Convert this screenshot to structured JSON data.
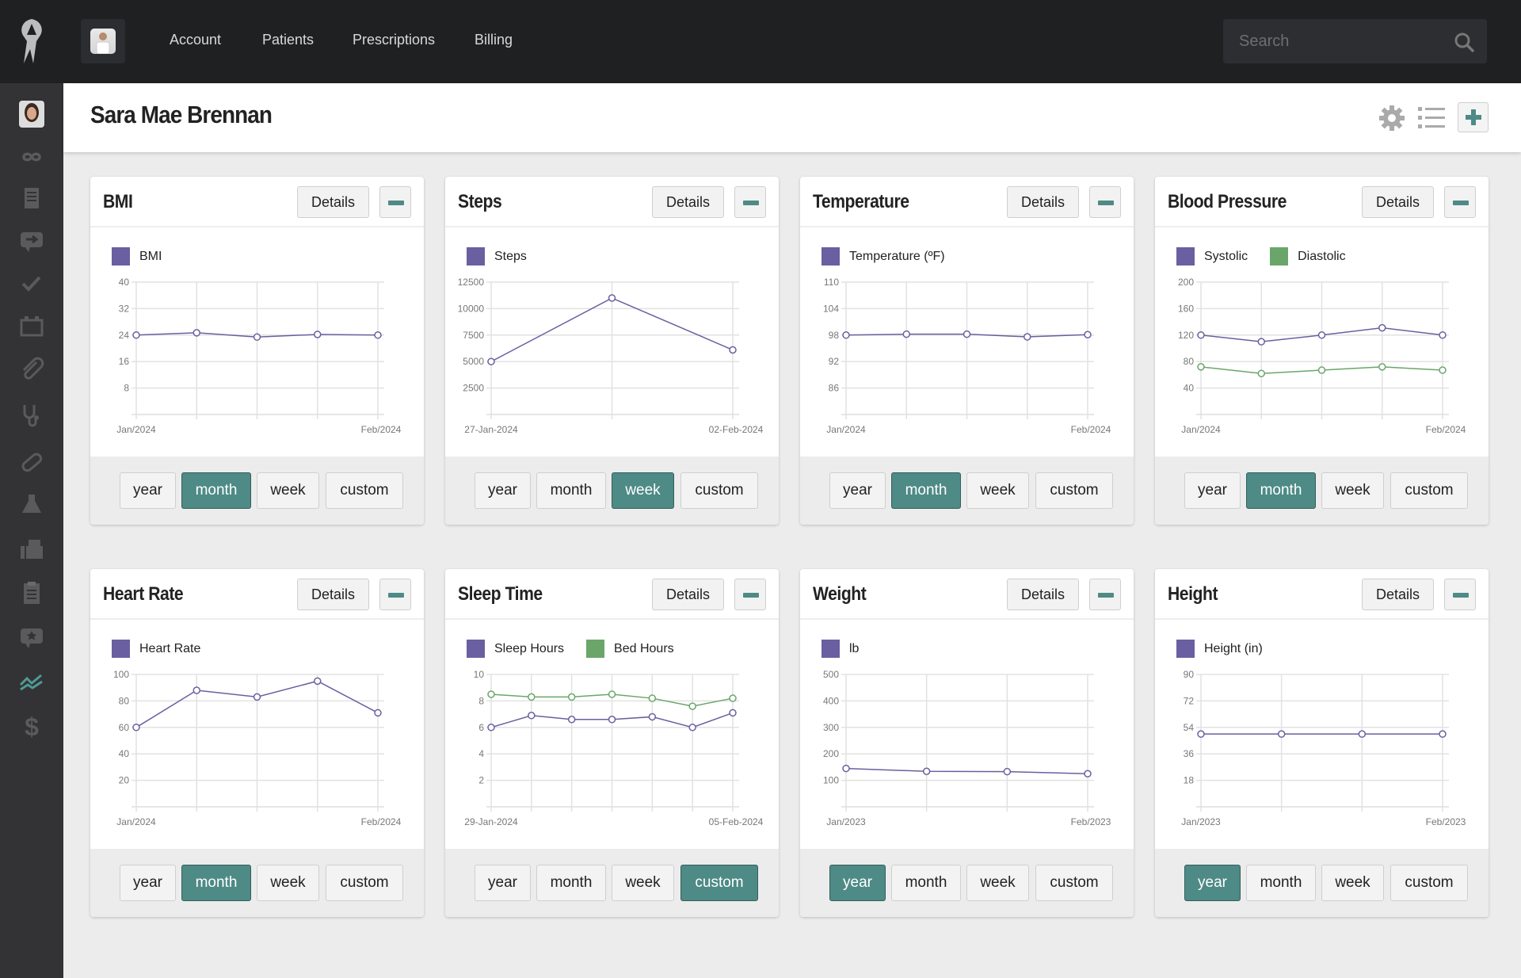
{
  "topbar": {
    "nav": [
      "Account",
      "Patients",
      "Prescriptions",
      "Billing"
    ],
    "search_placeholder": "Search"
  },
  "sidebar": {
    "items": [
      "patient-avatar",
      "infinity-icon",
      "document-icon",
      "message-forward-icon",
      "check-icon",
      "calendar-icon",
      "paperclip-icon",
      "stethoscope-icon",
      "pill-icon",
      "flask-icon",
      "fax-icon",
      "clipboard-icon",
      "star-message-icon",
      "vitals-chart-icon",
      "dollar-icon"
    ],
    "active": "vitals-chart-icon"
  },
  "header": {
    "title": "Sara Mae Brennan"
  },
  "colors": {
    "accent": "#4e8a86",
    "series1": "#6a5fa0",
    "series2": "#6aa66a"
  },
  "card_labels": {
    "details": "Details",
    "ranges": [
      "year",
      "month",
      "week",
      "custom"
    ]
  },
  "cards": [
    {
      "title": "BMI",
      "active_range": "month"
    },
    {
      "title": "Steps",
      "active_range": "week"
    },
    {
      "title": "Temperature",
      "active_range": "month"
    },
    {
      "title": "Blood Pressure",
      "active_range": "month"
    },
    {
      "title": "Heart Rate",
      "active_range": "month"
    },
    {
      "title": "Sleep Time",
      "active_range": "custom"
    },
    {
      "title": "Weight",
      "active_range": "year"
    },
    {
      "title": "Height",
      "active_range": "year"
    }
  ],
  "chart_data": [
    {
      "type": "line",
      "ylim": [
        0,
        40
      ],
      "yticks": [
        "8",
        "16",
        "24",
        "32",
        "40"
      ],
      "xlabels": [
        "Jan/2024",
        "Feb/2024"
      ],
      "grid": true,
      "series": [
        {
          "name": "BMI",
          "values": [
            24,
            24.7,
            23.4,
            24.2,
            24
          ]
        }
      ]
    },
    {
      "type": "line",
      "ylim": [
        0,
        12500
      ],
      "yticks": [
        "2500",
        "5000",
        "7500",
        "10000",
        "12500"
      ],
      "xlabels": [
        "27-Jan-2024",
        "02-Feb-2024"
      ],
      "grid": true,
      "series": [
        {
          "name": "Steps",
          "values": [
            5000,
            11000,
            6100
          ]
        }
      ]
    },
    {
      "type": "line",
      "ylim": [
        80,
        110
      ],
      "yticks": [
        "86",
        "92",
        "98",
        "104",
        "110"
      ],
      "xlabels": [
        "Jan/2024",
        "Feb/2024"
      ],
      "grid": true,
      "series": [
        {
          "name": "Temperature (ºF)",
          "values": [
            98,
            98.2,
            98.2,
            97.6,
            98.1
          ]
        }
      ]
    },
    {
      "type": "line",
      "ylim": [
        0,
        200
      ],
      "yticks": [
        "40",
        "80",
        "120",
        "160",
        "200"
      ],
      "xlabels": [
        "Jan/2024",
        "Feb/2024"
      ],
      "grid": true,
      "series": [
        {
          "name": "Systolic",
          "values": [
            120,
            110,
            120,
            131,
            120
          ]
        },
        {
          "name": "Diastolic",
          "values": [
            72,
            62,
            67,
            72,
            67
          ]
        }
      ]
    },
    {
      "type": "line",
      "ylim": [
        0,
        100
      ],
      "yticks": [
        "20",
        "40",
        "60",
        "80",
        "100"
      ],
      "xlabels": [
        "Jan/2024",
        "Feb/2024"
      ],
      "grid": true,
      "series": [
        {
          "name": "Heart Rate",
          "values": [
            60,
            88,
            83,
            95,
            71
          ]
        }
      ]
    },
    {
      "type": "line",
      "ylim": [
        0,
        10
      ],
      "yticks": [
        "2",
        "4",
        "6",
        "8",
        "10"
      ],
      "xlabels": [
        "29-Jan-2024",
        "05-Feb-2024"
      ],
      "grid": true,
      "series": [
        {
          "name": "Sleep Hours",
          "values": [
            6,
            6.9,
            6.6,
            6.6,
            6.8,
            6.0,
            7.1
          ]
        },
        {
          "name": "Bed Hours",
          "values": [
            8.5,
            8.3,
            8.3,
            8.5,
            8.2,
            7.6,
            8.2
          ]
        }
      ]
    },
    {
      "type": "line",
      "ylim": [
        0,
        500
      ],
      "yticks": [
        "100",
        "200",
        "300",
        "400",
        "500"
      ],
      "xlabels": [
        "Jan/2023",
        "Feb/2023"
      ],
      "grid": true,
      "series": [
        {
          "name": "lb",
          "values": [
            145,
            134,
            133,
            125
          ]
        }
      ]
    },
    {
      "type": "line",
      "ylim": [
        0,
        90
      ],
      "yticks": [
        "18",
        "36",
        "54",
        "72",
        "90"
      ],
      "xlabels": [
        "Jan/2023",
        "Feb/2023"
      ],
      "grid": true,
      "series": [
        {
          "name": "Height (in)",
          "values": [
            49.5,
            49.5,
            49.5,
            49.5
          ]
        }
      ]
    }
  ]
}
